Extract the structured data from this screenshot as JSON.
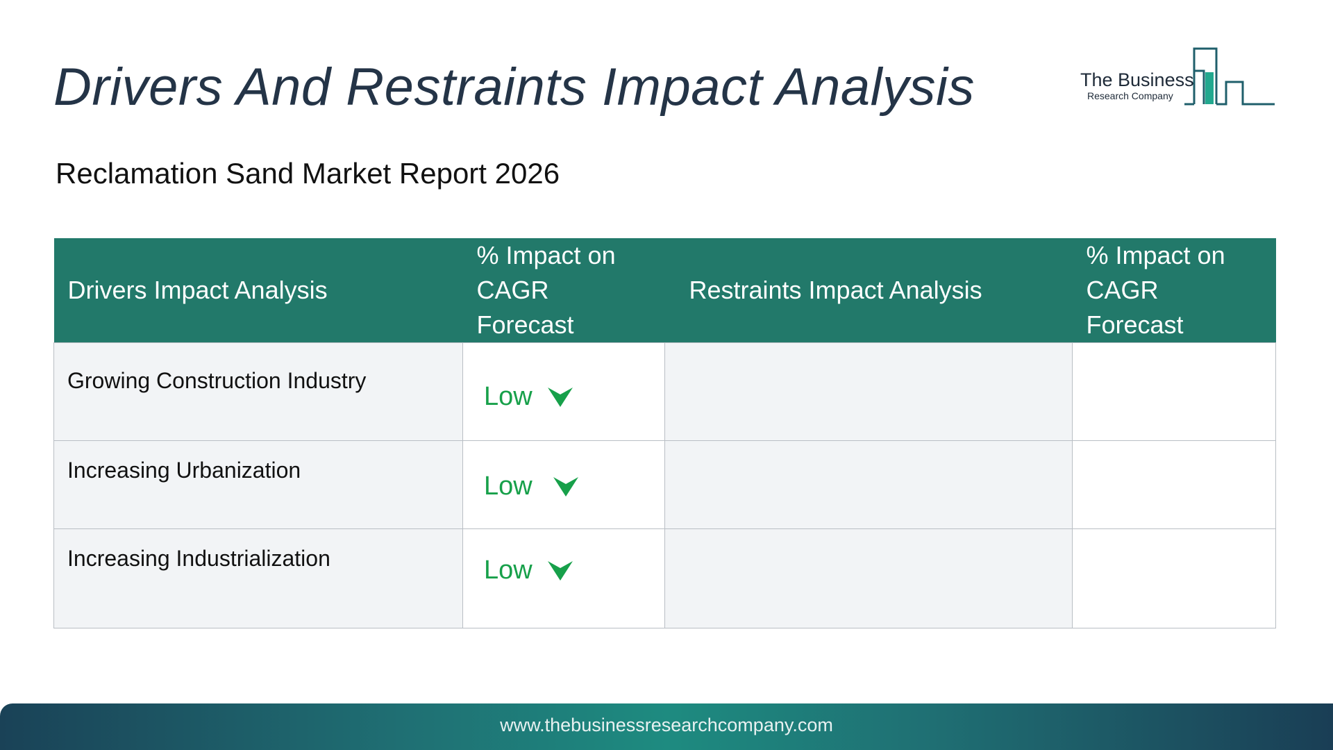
{
  "title": "Drivers And Restraints Impact Analysis",
  "subtitle": "Reclamation Sand Market Report 2026",
  "logo": {
    "line1": "The Business",
    "line2": "Research Company"
  },
  "table": {
    "headers": {
      "drivers": "Drivers Impact Analysis",
      "drivers_impact_line1": "% Impact on",
      "drivers_impact_line2": "CAGR Forecast",
      "restraints": "Restraints Impact Analysis",
      "restraints_impact_line1": "% Impact on",
      "restraints_impact_line2": "CAGR Forecast"
    },
    "rows": [
      {
        "driver": "Growing Construction Industry",
        "impact": "Low",
        "impact_icon": "down-arrow-icon",
        "restraint": "",
        "restraint_impact": ""
      },
      {
        "driver": "Increasing Urbanization",
        "impact": "Low",
        "impact_icon": "down-arrow-icon",
        "restraint": "",
        "restraint_impact": ""
      },
      {
        "driver": "Increasing Industrialization",
        "impact": "Low",
        "impact_icon": "down-arrow-icon",
        "restraint": "",
        "restraint_impact": ""
      }
    ]
  },
  "colors": {
    "header_bg": "#22796a",
    "low_impact": "#17a04a",
    "title": "#243447"
  },
  "footer": {
    "url": "www.thebusinessresearchcompany.com"
  }
}
